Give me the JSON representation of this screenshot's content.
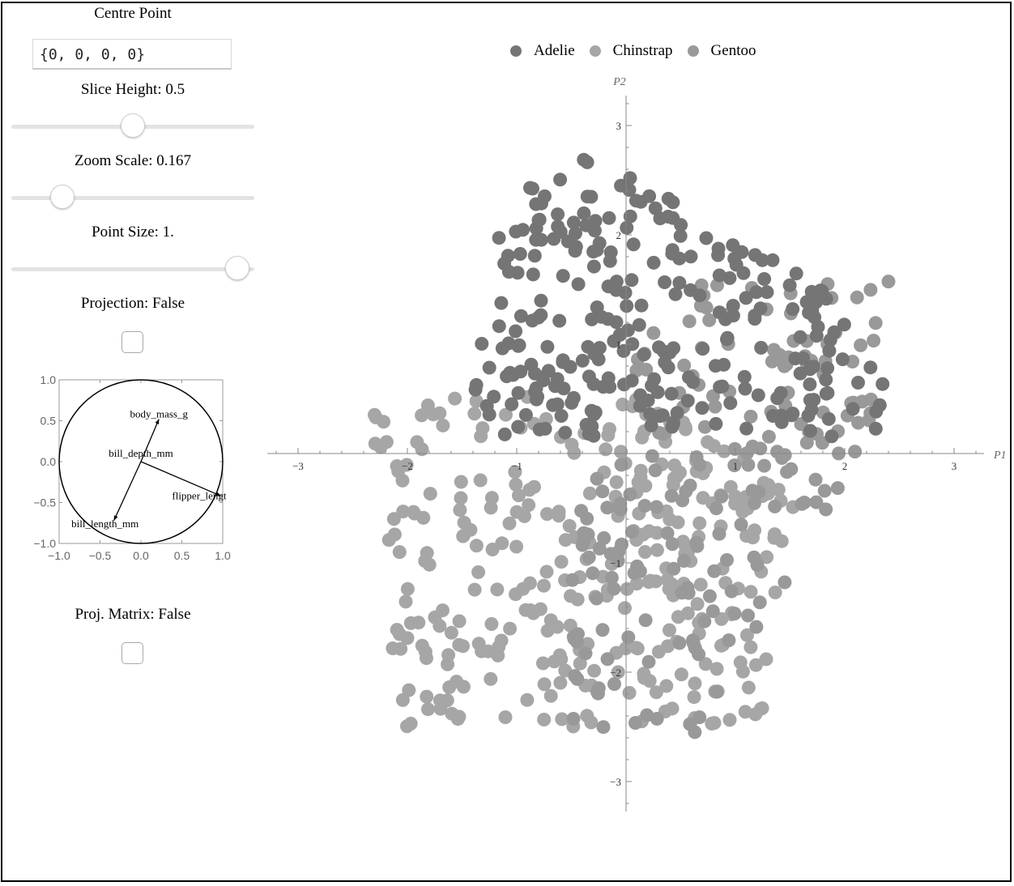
{
  "controls": {
    "centre_point": {
      "label": "Centre Point",
      "value": "{0, 0, 0, 0}"
    },
    "slice_height": {
      "label": "Slice Height: 0.5",
      "fraction": 0.5
    },
    "zoom_scale": {
      "label": "Zoom Scale: 0.167",
      "fraction": 0.21
    },
    "point_size": {
      "label": "Point Size: 1.",
      "fraction": 0.93
    },
    "projection": {
      "label": "Projection: False",
      "checked": false
    },
    "proj_matrix": {
      "label": "Proj. Matrix: False",
      "checked": false
    }
  },
  "colors": {
    "adelie": "#757575",
    "chinstrap": "#a6a6a6",
    "gentoo": "#999999"
  },
  "legend": {
    "items": [
      "Adelie",
      "Chinstrap",
      "Gentoo"
    ]
  },
  "chart_data": [
    {
      "type": "scatter",
      "title": "",
      "xlabel": "P1",
      "ylabel": "P2",
      "xlim": [
        -3.3,
        3.3
      ],
      "ylim": [
        -3.3,
        3.3
      ],
      "xticks": [
        "−3",
        "−2",
        "−1",
        "1",
        "2",
        "3"
      ],
      "xtick_values": [
        -3,
        -2,
        -1,
        1,
        2,
        3
      ],
      "yticks": [
        "3",
        "2",
        "1",
        "−1",
        "−2",
        "−3"
      ],
      "ytick_values": [
        3,
        2,
        1,
        -1,
        -2,
        -3
      ],
      "grid": false,
      "legend_position": "top",
      "series": [
        {
          "name": "Adelie",
          "region": {
            "x_min": -1.4,
            "x_max": 2.4,
            "y_min": 0.15,
            "y_max": 2.75
          },
          "count": 280
        },
        {
          "name": "Chinstrap",
          "region": {
            "x_min": -2.3,
            "x_max": 1.6,
            "y_min": -2.5,
            "y_max": 0.6
          },
          "count": 330
        },
        {
          "name": "Gentoo",
          "region": {
            "x_min": -0.5,
            "x_max": 2.4,
            "y_min": -2.6,
            "y_max": 1.6
          },
          "count": 200
        }
      ]
    },
    {
      "type": "line",
      "title": "",
      "xlim": [
        -1.0,
        1.0
      ],
      "ylim": [
        -1.0,
        1.0
      ],
      "xticks": [
        "−1.0",
        "−0.5",
        "0.0",
        "0.5",
        "1.0"
      ],
      "yticks": [
        "1.0",
        "0.5",
        "0.0",
        "−0.5",
        "−1.0"
      ],
      "tick_values": [
        -1.0,
        -0.5,
        0.0,
        0.5,
        1.0
      ],
      "vectors": [
        {
          "name": "body_mass_g",
          "x": 0.22,
          "y": 0.52
        },
        {
          "name": "bill_depth_mm",
          "x": 0.0,
          "y": 0.0
        },
        {
          "name": "flipper_lengt",
          "x": 0.98,
          "y": -0.42
        },
        {
          "name": "bill_length_mm",
          "x": -0.33,
          "y": -0.72
        }
      ]
    }
  ]
}
